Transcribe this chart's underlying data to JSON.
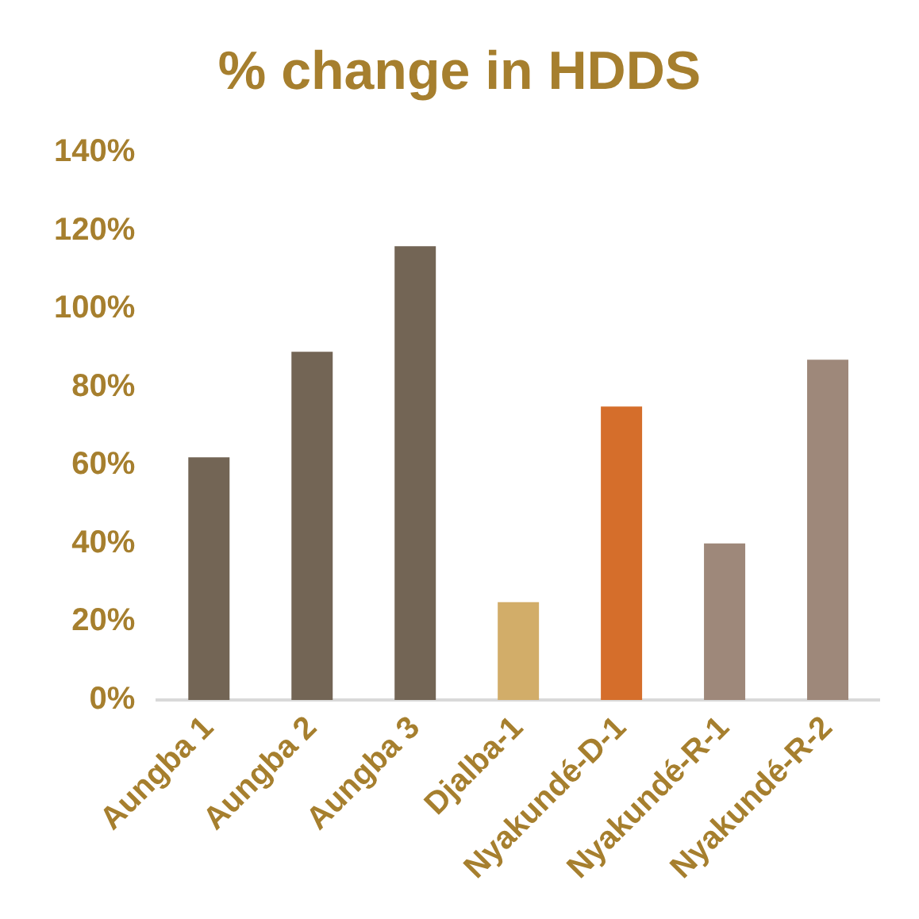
{
  "chart_data": {
    "type": "bar",
    "title": "% change in HDDS",
    "categories": [
      "Aungba 1",
      "Aungba 2",
      "Aungba 3",
      "Djalba-1",
      "Nyakundé-D-1",
      "Nyakundé-R-1",
      "Nyakundé-R-2"
    ],
    "values": [
      62,
      89,
      116,
      25,
      75,
      40,
      87
    ],
    "colors": [
      "#736555",
      "#736555",
      "#736555",
      "#d2ad69",
      "#d56e2b",
      "#9e887a",
      "#9e887a"
    ],
    "ylim": [
      0,
      140
    ],
    "yticks": [
      {
        "value": 0,
        "label": "0%"
      },
      {
        "value": 20,
        "label": "20%"
      },
      {
        "value": 40,
        "label": "40%"
      },
      {
        "value": 60,
        "label": "60%"
      },
      {
        "value": 80,
        "label": "80%"
      },
      {
        "value": 100,
        "label": "100%"
      },
      {
        "value": 120,
        "label": "120%"
      },
      {
        "value": 140,
        "label": "140%"
      }
    ],
    "grid": false,
    "legend": false
  }
}
